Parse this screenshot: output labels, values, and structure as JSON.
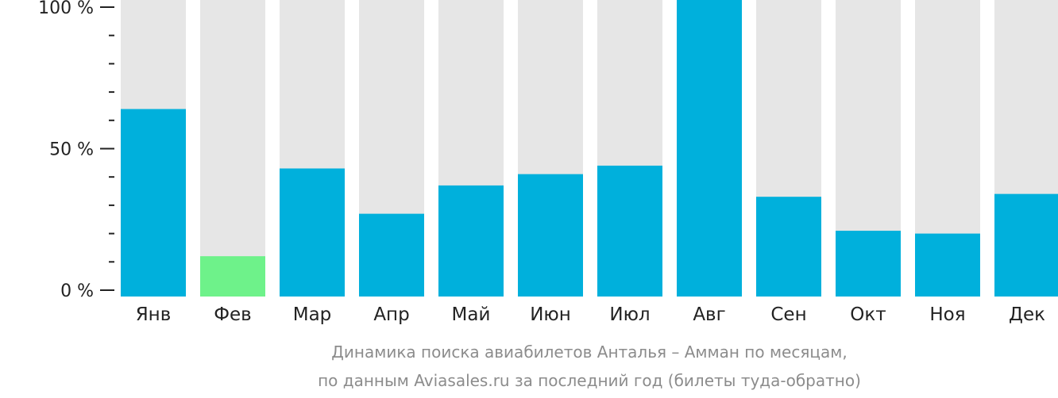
{
  "chart_data": {
    "type": "bar",
    "title": "",
    "xlabel": "",
    "ylabel": "",
    "ylim": [
      0,
      100
    ],
    "y_ticks": [
      "0 %",
      "50 %",
      "100 %"
    ],
    "categories": [
      "Янв",
      "Фев",
      "Мар",
      "Апр",
      "Май",
      "Июн",
      "Июл",
      "Авг",
      "Сен",
      "Окт",
      "Ноя",
      "Дек"
    ],
    "values": [
      64,
      12,
      43,
      27,
      37,
      41,
      44,
      100,
      33,
      21,
      20,
      34
    ],
    "highlight_index": 1,
    "colors": {
      "bar": "#00b0dc",
      "highlight": "#6ef28a",
      "background_bar": "#e6e6e6",
      "axis": "#222222"
    }
  },
  "caption": {
    "line1": "Динамика поиска авиабилетов Анталья – Амман по месяцам,",
    "line2": "по данным Aviasales.ru за последний год (билеты туда-обратно)"
  }
}
